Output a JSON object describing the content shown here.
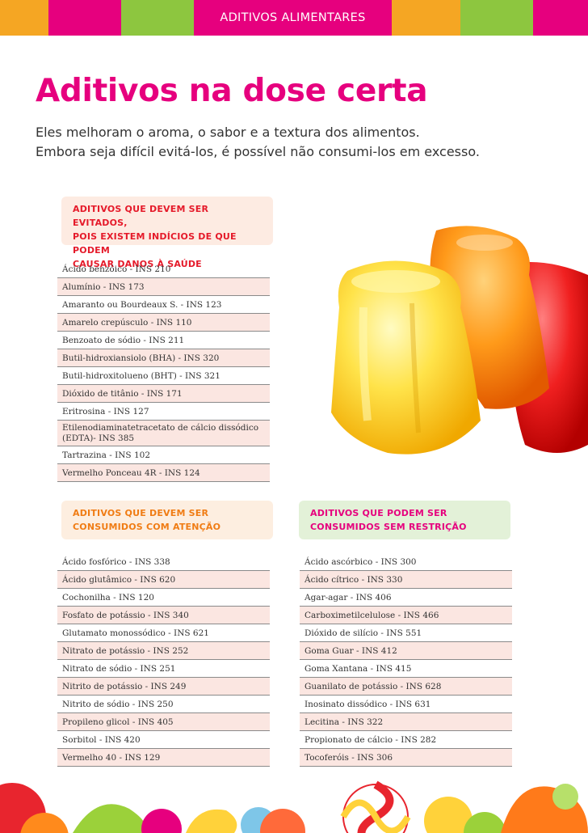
{
  "header": {
    "section_label": "ADITIVOS ALIMENTARES",
    "segment_colors": [
      "#f5a623",
      "#e6007e",
      "#8dc63f",
      "#e6007e",
      "#f5a623",
      "#8dc63f"
    ]
  },
  "article": {
    "title": "Aditivos na dose certa",
    "subtitle_lines": [
      "Eles melhoram o aroma, o sabor e a textura dos alimentos.",
      "Embora seja difícil evitá-los, é possível não consumi-los em excesso."
    ]
  },
  "sections": {
    "avoid": {
      "heading_lines": [
        "ADITIVOS QUE DEVEM SER EVITADOS,",
        "POIS EXISTEM INDÍCIOS DE QUE PODEM",
        "CAUSAR DANOS À SAÚDE"
      ],
      "items": [
        "Ácido benzóico - INS 210",
        "Alumínio - INS 173",
        "Amaranto ou Bourdeaux S. - INS 123",
        "Amarelo crepúsculo - INS 110",
        "Benzoato de sódio - INS 211",
        "Butil-hidroxiansiolo (BHA) - INS 320",
        "Butil-hidroxitolueno (BHT) - INS 321",
        "Dióxido de titânio - INS 171",
        "Eritrosina - INS 127",
        "Etilenodiaminatetracetato de cálcio dissódico (EDTA)- INS 385",
        "Tartrazina - INS 102",
        "Vermelho Ponceau 4R - INS 124"
      ]
    },
    "caution": {
      "heading_lines": [
        "ADITIVOS QUE DEVEM SER",
        "CONSUMIDOS COM ATENÇÃO"
      ],
      "items": [
        "Ácido fosfórico - INS 338",
        "Ácido glutâmico - INS 620",
        "Cochonilha - INS 120",
        "Fosfato de potássio - INS 340",
        "Glutamato monossódico - INS 621",
        "Nitrato de potássio - INS 252",
        "Nitrato de sódio - INS 251",
        "Nitrito de potássio - INS 249",
        "Nitrito de sódio - INS 250",
        "Propileno glicol - INS 405",
        "Sorbitol - INS 420",
        "Vermelho 40 - INS 129"
      ]
    },
    "free": {
      "heading_lines": [
        "ADITIVOS QUE PODEM SER",
        "CONSUMIDOS SEM RESTRIÇÃO"
      ],
      "items": [
        "Ácido ascórbico - INS 300",
        "Ácido cítrico - INS 330",
        "Agar-agar - INS 406",
        "Carboximetilcelulose - INS 466",
        "Dióxido de silício - INS 551",
        "Goma Guar - INS 412",
        "Goma Xantana - INS 415",
        "Guanilato de potássio - INS 628",
        "Inosinato dissódico - INS 631",
        "Lecitina - INS 322",
        "Propionato de cálcio - INS 282",
        "Tocoferóis - INS 306"
      ]
    }
  }
}
